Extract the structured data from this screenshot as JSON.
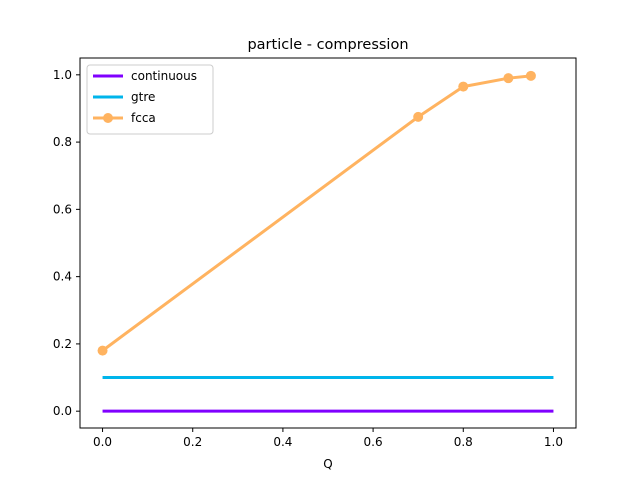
{
  "chart_data": {
    "type": "line",
    "title": "particle - compression",
    "xlabel": "Q",
    "ylabel": "",
    "xlim": [
      -0.05,
      1.05
    ],
    "ylim": [
      -0.05,
      1.05
    ],
    "x_ticks": [
      0.0,
      0.2,
      0.4,
      0.6,
      0.8,
      1.0
    ],
    "y_ticks": [
      0.0,
      0.2,
      0.4,
      0.6,
      0.8,
      1.0
    ],
    "x_tick_labels": [
      "0.0",
      "0.2",
      "0.4",
      "0.6",
      "0.8",
      "1.0"
    ],
    "y_tick_labels": [
      "0.0",
      "0.2",
      "0.4",
      "0.6",
      "0.8",
      "1.0"
    ],
    "grid": false,
    "legend_position": "top-left",
    "series": [
      {
        "name": "continuous",
        "color": "#8000ff",
        "markers": false,
        "x": [
          0.0,
          1.0
        ],
        "y": [
          0.0,
          0.0
        ]
      },
      {
        "name": "gtre",
        "color": "#00b5eb",
        "markers": false,
        "x": [
          0.0,
          1.0
        ],
        "y": [
          0.1,
          0.1
        ]
      },
      {
        "name": "fcca",
        "color": "#ffb360",
        "markers": true,
        "x": [
          0.0,
          0.7,
          0.8,
          0.9,
          0.95
        ],
        "y": [
          0.18,
          0.875,
          0.965,
          0.99,
          0.997
        ]
      }
    ]
  }
}
